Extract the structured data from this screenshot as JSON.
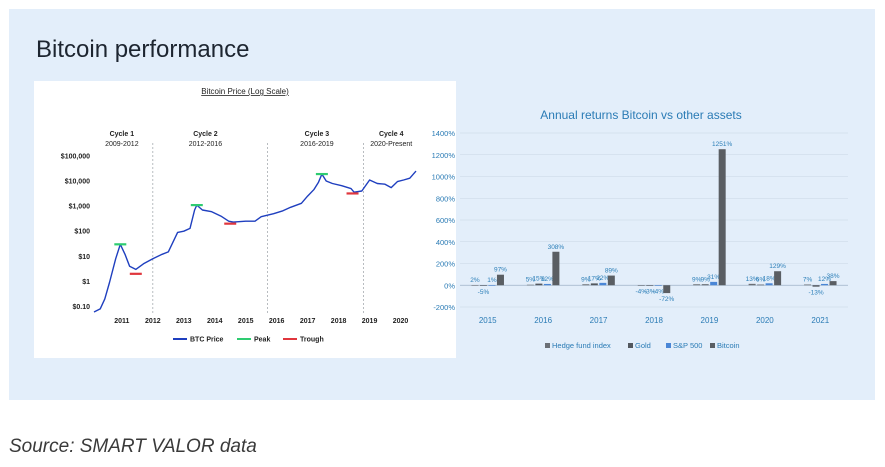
{
  "page": {
    "title": "Bitcoin performance",
    "source": "Source: SMART VALOR data"
  },
  "chart_data": [
    {
      "type": "line",
      "title": "Bitcoin Price (Log Scale)",
      "y_scale": "log",
      "ylim": [
        0.05,
        300000
      ],
      "y_ticks": [
        {
          "label": "$100,000",
          "value": 100000
        },
        {
          "label": "$10,000",
          "value": 10000
        },
        {
          "label": "$1,000",
          "value": 1000
        },
        {
          "label": "$100",
          "value": 100
        },
        {
          "label": "$10",
          "value": 10
        },
        {
          "label": "$1",
          "value": 1
        },
        {
          "label": "$0.10",
          "value": 0.1
        }
      ],
      "xlim": [
        2010.6,
        2021.0
      ],
      "x_ticks": [
        "2011",
        "2012",
        "2013",
        "2014",
        "2015",
        "2016",
        "2017",
        "2018",
        "2019",
        "2020"
      ],
      "cycle_dividers": [
        2012.5,
        2016.2,
        2019.3
      ],
      "cycles": [
        {
          "name": "Cycle 1",
          "range": "2009-2012",
          "center": 2011.5
        },
        {
          "name": "Cycle 2",
          "range": "2012-2016",
          "center": 2014.2
        },
        {
          "name": "Cycle 3",
          "range": "2016-2019",
          "center": 2017.8
        },
        {
          "name": "Cycle 4",
          "range": "2020-Present",
          "center": 2020.2
        }
      ],
      "series": [
        {
          "name": "BTC Price",
          "color": "#1f3fbf",
          "points": [
            [
              2010.6,
              0.06
            ],
            [
              2010.8,
              0.08
            ],
            [
              2010.95,
              0.2
            ],
            [
              2011.1,
              0.9
            ],
            [
              2011.3,
              8
            ],
            [
              2011.45,
              30
            ],
            [
              2011.6,
              12
            ],
            [
              2011.75,
              4
            ],
            [
              2011.95,
              3
            ],
            [
              2012.2,
              5
            ],
            [
              2012.5,
              8
            ],
            [
              2012.8,
              12
            ],
            [
              2013.0,
              15
            ],
            [
              2013.3,
              90
            ],
            [
              2013.5,
              100
            ],
            [
              2013.7,
              130
            ],
            [
              2013.85,
              700
            ],
            [
              2013.92,
              1100
            ],
            [
              2014.1,
              700
            ],
            [
              2014.4,
              600
            ],
            [
              2014.7,
              400
            ],
            [
              2014.95,
              250
            ],
            [
              2015.1,
              230
            ],
            [
              2015.5,
              250
            ],
            [
              2015.8,
              250
            ],
            [
              2016.0,
              380
            ],
            [
              2016.4,
              500
            ],
            [
              2016.7,
              650
            ],
            [
              2016.95,
              900
            ],
            [
              2017.3,
              1300
            ],
            [
              2017.5,
              2500
            ],
            [
              2017.7,
              4500
            ],
            [
              2017.85,
              9000
            ],
            [
              2017.96,
              19000
            ],
            [
              2018.1,
              10000
            ],
            [
              2018.3,
              8000
            ],
            [
              2018.6,
              6500
            ],
            [
              2018.9,
              5000
            ],
            [
              2019.0,
              3600
            ],
            [
              2019.25,
              4000
            ],
            [
              2019.5,
              11000
            ],
            [
              2019.75,
              8000
            ],
            [
              2020.0,
              7500
            ],
            [
              2020.2,
              5500
            ],
            [
              2020.4,
              9500
            ],
            [
              2020.6,
              11000
            ],
            [
              2020.8,
              13000
            ],
            [
              2021.0,
              25000
            ]
          ]
        },
        {
          "name": "Peak",
          "color": "#2ecc71",
          "markers": [
            [
              2011.45,
              30
            ],
            [
              2013.92,
              1100
            ],
            [
              2017.96,
              19000
            ]
          ]
        },
        {
          "name": "Trough",
          "color": "#e0363d",
          "markers": [
            [
              2011.95,
              2
            ],
            [
              2015.0,
              200
            ],
            [
              2018.95,
              3200
            ]
          ]
        }
      ],
      "legend": [
        "BTC Price",
        "Peak",
        "Trough"
      ],
      "legend_position": "bottom"
    },
    {
      "type": "bar",
      "title": "Annual returns Bitcoin vs other assets",
      "ylim": [
        -200,
        1400
      ],
      "y_ticks": [
        1400,
        1200,
        1000,
        800,
        600,
        400,
        200,
        0,
        -200
      ],
      "y_format": "percent",
      "categories": [
        "2015",
        "2016",
        "2017",
        "2018",
        "2019",
        "2020",
        "2021"
      ],
      "series": [
        {
          "name": "Hedge fund index",
          "color": "#6b6f75",
          "values": [
            2,
            5,
            9,
            -4,
            9,
            13,
            7
          ]
        },
        {
          "name": "Gold",
          "color": "#53585e",
          "values": [
            -5,
            15,
            17,
            -3,
            9,
            6,
            -13
          ]
        },
        {
          "name": "S&P 500",
          "color": "#4a86d6",
          "values": [
            1,
            12,
            22,
            -4,
            31,
            18,
            12
          ]
        },
        {
          "name": "Bitcoin",
          "color": "#5a5e63",
          "values": [
            97,
            308,
            89,
            -72,
            1251,
            129,
            38
          ]
        }
      ],
      "data_labels": [
        [
          [
            "2%"
          ],
          [
            "-5%"
          ],
          [
            "1%"
          ],
          [
            "97%"
          ]
        ],
        [
          [
            "5%"
          ],
          [
            "15%"
          ],
          [
            "12%"
          ],
          [
            "308%"
          ]
        ],
        [
          [
            "9%"
          ],
          [
            "17%"
          ],
          [
            "22%"
          ],
          [
            "89%"
          ]
        ],
        [
          [
            "-4%"
          ],
          [
            "-3%"
          ],
          [
            "-4%"
          ],
          [
            "-72%"
          ]
        ],
        [
          [
            "9%"
          ],
          [
            "9%"
          ],
          [
            "31%"
          ],
          [
            "1251%"
          ]
        ],
        [
          [
            "13%"
          ],
          [
            "6%"
          ],
          [
            "18%"
          ],
          [
            "129%"
          ]
        ],
        [
          [
            "7%"
          ],
          [
            "-13%"
          ],
          [
            "12%"
          ],
          [
            "38%"
          ]
        ]
      ],
      "label_color": "#2c7fb8",
      "legend": [
        "Hedge fund index",
        "Gold",
        "S&P 500",
        "Bitcoin"
      ],
      "legend_position": "bottom"
    }
  ]
}
